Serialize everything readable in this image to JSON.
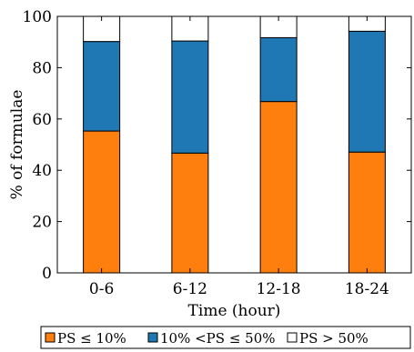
{
  "chart_data": {
    "type": "bar",
    "stacked": true,
    "categories": [
      "0-6",
      "6-12",
      "12-18",
      "18-24"
    ],
    "series": [
      {
        "name": "PS ≤ 10%",
        "values": [
          55.3,
          46.7,
          66.8,
          47.1
        ],
        "color": "#ff7f0e"
      },
      {
        "name": "10% <PS ≤ 50%",
        "values": [
          34.9,
          43.7,
          24.9,
          47.1
        ],
        "color": "#1f77b4"
      },
      {
        "name": "PS > 50%",
        "values": [
          9.8,
          9.6,
          8.3,
          5.8
        ],
        "color": "#ffffff"
      }
    ],
    "title": "",
    "xlabel": "Time (hour)",
    "ylabel": "% of formulae",
    "ylim": [
      0,
      100
    ],
    "yticks": [
      0,
      20,
      40,
      60,
      80,
      100
    ],
    "grid": false,
    "legend_position": "bottom"
  }
}
